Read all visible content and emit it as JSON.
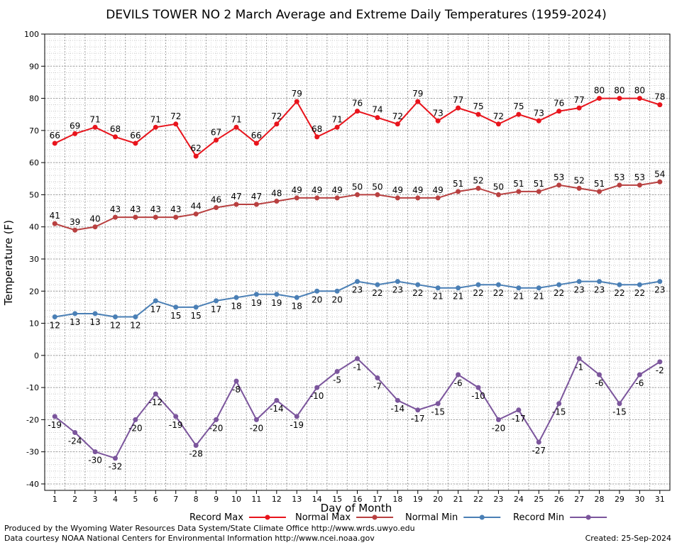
{
  "chart_data": {
    "type": "line",
    "title": "DEVILS TOWER NO 2 March Average and Extreme Daily Temperatures (1959-2024)",
    "xlabel": "Day of Month",
    "ylabel": "Temperature (F)",
    "ylim": [
      -42,
      100
    ],
    "yticks": [
      100,
      90,
      80,
      70,
      60,
      50,
      40,
      30,
      20,
      10,
      0,
      -10,
      -20,
      -30,
      -40
    ],
    "x": [
      1,
      2,
      3,
      4,
      5,
      6,
      7,
      8,
      9,
      10,
      11,
      12,
      13,
      14,
      15,
      16,
      17,
      18,
      19,
      20,
      21,
      22,
      23,
      24,
      25,
      26,
      27,
      28,
      29,
      30,
      31
    ],
    "grid": true,
    "legend_position": "bottom",
    "series": [
      {
        "name": "Record Max",
        "color": "#e8141c",
        "label_pos": "above",
        "values": [
          66,
          69,
          71,
          68,
          66,
          71,
          72,
          62,
          67,
          71,
          66,
          72,
          79,
          68,
          71,
          76,
          74,
          72,
          79,
          73,
          77,
          75,
          72,
          75,
          73,
          76,
          77,
          80,
          80,
          80,
          78
        ]
      },
      {
        "name": "Normal Max",
        "color": "#b84040",
        "label_pos": "above",
        "values": [
          41,
          39,
          40,
          43,
          43,
          43,
          43,
          44,
          46,
          47,
          47,
          48,
          49,
          49,
          49,
          50,
          50,
          49,
          49,
          49,
          51,
          52,
          50,
          51,
          51,
          53,
          52,
          51,
          53,
          53,
          54
        ]
      },
      {
        "name": "Normal Min",
        "color": "#4a7fb5",
        "label_pos": "below",
        "values": [
          12,
          13,
          13,
          12,
          12,
          17,
          15,
          15,
          17,
          18,
          19,
          19,
          18,
          20,
          20,
          23,
          22,
          23,
          22,
          21,
          21,
          22,
          22,
          21,
          21,
          22,
          23,
          23,
          22,
          22,
          23
        ]
      },
      {
        "name": "Record Min",
        "color": "#7b559c",
        "label_pos": "below",
        "values": [
          -19,
          -24,
          -30,
          -32,
          -20,
          -12,
          -19,
          -28,
          -20,
          -8,
          -20,
          -14,
          -19,
          -10,
          -5,
          -1,
          -7,
          -14,
          -17,
          -15,
          -6,
          -10,
          -20,
          -17,
          -27,
          -15,
          -1,
          -6,
          -15,
          -6,
          -2
        ]
      }
    ]
  },
  "footer": {
    "produced_by": "Produced by the Wyoming Water Resources Data System/State Climate Office http://www.wrds.uwyo.edu",
    "data_courtesy": "Data courtesy NOAA National Centers for Environmental Information http://www.ncei.noaa.gov",
    "created": "Created:  25-Sep-2024"
  }
}
